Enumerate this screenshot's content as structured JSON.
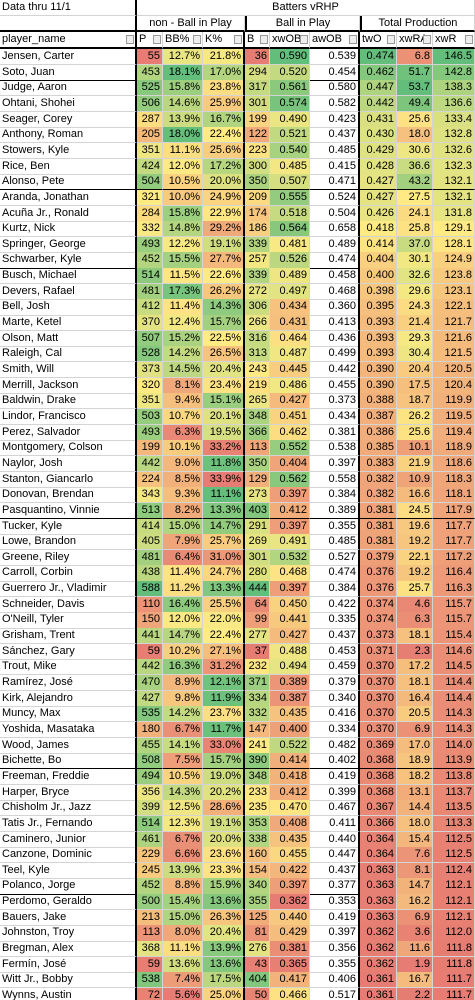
{
  "header": {
    "date": "Data thru 11/1",
    "title": "Batters vRHP",
    "groups": [
      "non - Ball in Play",
      "Ball in Play",
      "Total Production"
    ]
  },
  "table": {
    "columns": [
      "player_name",
      "P",
      "BB%",
      "K%",
      "B",
      "xwOB",
      "awOB",
      "twO",
      "xwRA",
      "xwR"
    ],
    "rows": [
      [
        "Jensen, Carter",
        "55",
        "12.7%",
        "21.8%",
        "36",
        "0.590",
        "0.539",
        "0.474",
        "6.8",
        "146.5"
      ],
      [
        "Soto, Juan",
        "453",
        "18.1%",
        "17.0%",
        "294",
        "0.520",
        "0.454",
        "0.462",
        "51.7",
        "142.8"
      ],
      [
        "Judge, Aaron",
        "525",
        "15.8%",
        "23.8%",
        "317",
        "0.561",
        "0.580",
        "0.447",
        "53.7",
        "138.3"
      ],
      [
        "Ohtani, Shohei",
        "506",
        "14.6%",
        "25.9%",
        "301",
        "0.574",
        "0.582",
        "0.442",
        "49.4",
        "136.6"
      ],
      [
        "Seager, Corey",
        "287",
        "13.9%",
        "16.7%",
        "199",
        "0.490",
        "0.423",
        "0.431",
        "25.6",
        "133.4"
      ],
      [
        "Anthony, Roman",
        "205",
        "18.0%",
        "22.4%",
        "122",
        "0.521",
        "0.437",
        "0.430",
        "18.0",
        "132.8"
      ],
      [
        "Stowers, Kyle",
        "351",
        "11.1%",
        "25.6%",
        "223",
        "0.540",
        "0.485",
        "0.429",
        "30.6",
        "132.6"
      ],
      [
        "Rice, Ben",
        "424",
        "12.0%",
        "17.2%",
        "300",
        "0.485",
        "0.415",
        "0.428",
        "36.6",
        "132.3"
      ],
      [
        "Alonso, Pete",
        "504",
        "10.5%",
        "20.0%",
        "350",
        "0.507",
        "0.471",
        "0.427",
        "43.2",
        "132.1"
      ],
      [
        "Aranda, Jonathan",
        "321",
        "10.0%",
        "24.9%",
        "209",
        "0.555",
        "0.524",
        "0.427",
        "27.5",
        "132.1"
      ],
      [
        "Acuña Jr., Ronald",
        "284",
        "15.8%",
        "22.9%",
        "174",
        "0.518",
        "0.504",
        "0.426",
        "24.1",
        "131.8"
      ],
      [
        "Kurtz, Nick",
        "332",
        "14.8%",
        "29.2%",
        "186",
        "0.564",
        "0.658",
        "0.418",
        "25.8",
        "129.1"
      ],
      [
        "Springer, George",
        "493",
        "12.2%",
        "19.1%",
        "339",
        "0.481",
        "0.489",
        "0.414",
        "37.0",
        "128.1"
      ],
      [
        "Schwarber, Kyle",
        "452",
        "15.5%",
        "27.7%",
        "257",
        "0.526",
        "0.474",
        "0.404",
        "30.1",
        "124.9"
      ],
      [
        "Busch, Michael",
        "514",
        "11.5%",
        "22.6%",
        "339",
        "0.489",
        "0.458",
        "0.400",
        "32.6",
        "123.8"
      ],
      [
        "Devers, Rafael",
        "481",
        "17.3%",
        "26.2%",
        "272",
        "0.497",
        "0.468",
        "0.398",
        "29.6",
        "123.1"
      ],
      [
        "Bell, Josh",
        "412",
        "11.4%",
        "14.3%",
        "306",
        "0.434",
        "0.360",
        "0.395",
        "24.3",
        "122.1"
      ],
      [
        "Marte, Ketel",
        "370",
        "12.4%",
        "15.7%",
        "266",
        "0.431",
        "0.413",
        "0.393",
        "21.4",
        "121.7"
      ],
      [
        "Olson, Matt",
        "507",
        "15.2%",
        "22.5%",
        "316",
        "0.464",
        "0.436",
        "0.393",
        "29.3",
        "121.6"
      ],
      [
        "Raleigh, Cal",
        "528",
        "14.2%",
        "26.5%",
        "313",
        "0.487",
        "0.499",
        "0.393",
        "30.4",
        "121.5"
      ],
      [
        "Smith, Will",
        "373",
        "14.5%",
        "20.4%",
        "243",
        "0.445",
        "0.442",
        "0.390",
        "20.4",
        "120.5"
      ],
      [
        "Merrill, Jackson",
        "320",
        "8.1%",
        "23.4%",
        "219",
        "0.486",
        "0.455",
        "0.390",
        "17.5",
        "120.4"
      ],
      [
        "Baldwin, Drake",
        "351",
        "9.4%",
        "15.1%",
        "265",
        "0.427",
        "0.373",
        "0.388",
        "18.7",
        "119.9"
      ],
      [
        "Lindor, Francisco",
        "503",
        "10.7%",
        "20.1%",
        "348",
        "0.451",
        "0.434",
        "0.387",
        "26.2",
        "119.5"
      ],
      [
        "Perez, Salvador",
        "493",
        "6.3%",
        "19.5%",
        "366",
        "0.462",
        "0.381",
        "0.386",
        "25.6",
        "119.4"
      ],
      [
        "Montgomery, Colson",
        "199",
        "10.1%",
        "33.2%",
        "113",
        "0.552",
        "0.538",
        "0.385",
        "10.1",
        "118.9"
      ],
      [
        "Naylor, Josh",
        "442",
        "9.0%",
        "11.8%",
        "350",
        "0.404",
        "0.397",
        "0.383",
        "21.9",
        "118.6"
      ],
      [
        "Stanton, Giancarlo",
        "224",
        "8.5%",
        "33.9%",
        "129",
        "0.562",
        "0.558",
        "0.382",
        "10.9",
        "118.3"
      ],
      [
        "Donovan, Brendan",
        "343",
        "9.3%",
        "11.1%",
        "273",
        "0.397",
        "0.384",
        "0.382",
        "16.6",
        "118.1"
      ],
      [
        "Pasquantino, Vinnie",
        "513",
        "8.2%",
        "13.3%",
        "403",
        "0.412",
        "0.389",
        "0.381",
        "24.5",
        "117.9"
      ],
      [
        "Tucker, Kyle",
        "414",
        "15.0%",
        "14.7%",
        "291",
        "0.397",
        "0.355",
        "0.381",
        "19.6",
        "117.7"
      ],
      [
        "Lowe, Brandon",
        "405",
        "7.9%",
        "25.7%",
        "269",
        "0.491",
        "0.485",
        "0.381",
        "19.2",
        "117.7"
      ],
      [
        "Greene, Riley",
        "481",
        "6.4%",
        "31.0%",
        "301",
        "0.532",
        "0.527",
        "0.379",
        "22.1",
        "117.2"
      ],
      [
        "Carroll, Corbin",
        "438",
        "11.4%",
        "24.7%",
        "280",
        "0.468",
        "0.474",
        "0.376",
        "19.2",
        "116.4"
      ],
      [
        "Guerrero Jr., Vladimir",
        "588",
        "11.2%",
        "13.3%",
        "444",
        "0.397",
        "0.384",
        "0.376",
        "25.7",
        "116.3"
      ],
      [
        "Schneider, Davis",
        "110",
        "16.4%",
        "25.5%",
        "64",
        "0.450",
        "0.422",
        "0.374",
        "4.6",
        "115.7"
      ],
      [
        "O'Neill, Tyler",
        "150",
        "12.0%",
        "22.0%",
        "99",
        "0.441",
        "0.335",
        "0.374",
        "6.3",
        "115.7"
      ],
      [
        "Grisham, Trent",
        "441",
        "14.7%",
        "22.4%",
        "277",
        "0.427",
        "0.437",
        "0.373",
        "18.1",
        "115.4"
      ],
      [
        "Sánchez, Gary",
        "59",
        "10.2%",
        "27.1%",
        "37",
        "0.488",
        "0.453",
        "0.371",
        "2.3",
        "114.6"
      ],
      [
        "Trout, Mike",
        "442",
        "16.3%",
        "31.2%",
        "232",
        "0.494",
        "0.459",
        "0.370",
        "17.2",
        "114.5"
      ],
      [
        "Ramírez, José",
        "470",
        "8.9%",
        "12.1%",
        "371",
        "0.389",
        "0.379",
        "0.370",
        "18.1",
        "114.4"
      ],
      [
        "Kirk, Alejandro",
        "427",
        "9.8%",
        "11.9%",
        "334",
        "0.387",
        "0.340",
        "0.370",
        "16.4",
        "114.4"
      ],
      [
        "Muncy, Max",
        "535",
        "14.2%",
        "23.7%",
        "332",
        "0.435",
        "0.416",
        "0.370",
        "20.5",
        "114.3"
      ],
      [
        "Yoshida, Masataka",
        "180",
        "6.7%",
        "11.7%",
        "147",
        "0.400",
        "0.334",
        "0.370",
        "6.9",
        "114.3"
      ],
      [
        "Wood, James",
        "455",
        "14.1%",
        "33.0%",
        "241",
        "0.522",
        "0.482",
        "0.369",
        "17.0",
        "114.0"
      ],
      [
        "Bichette, Bo",
        "508",
        "7.5%",
        "15.7%",
        "390",
        "0.414",
        "0.402",
        "0.368",
        "18.9",
        "113.9"
      ],
      [
        "Freeman, Freddie",
        "494",
        "10.5%",
        "19.0%",
        "348",
        "0.418",
        "0.419",
        "0.368",
        "18.2",
        "113.8"
      ],
      [
        "Harper, Bryce",
        "356",
        "14.3%",
        "20.2%",
        "233",
        "0.412",
        "0.399",
        "0.368",
        "13.1",
        "113.7"
      ],
      [
        "Chisholm Jr., Jazz",
        "399",
        "12.5%",
        "28.6%",
        "235",
        "0.470",
        "0.467",
        "0.367",
        "14.4",
        "113.5"
      ],
      [
        "Tatis Jr., Fernando",
        "514",
        "12.3%",
        "19.1%",
        "353",
        "0.408",
        "0.411",
        "0.366",
        "18.0",
        "113.3"
      ],
      [
        "Caminero, Junior",
        "461",
        "6.7%",
        "20.0%",
        "338",
        "0.435",
        "0.440",
        "0.364",
        "15.4",
        "112.5"
      ],
      [
        "Canzone, Dominic",
        "229",
        "6.6%",
        "23.6%",
        "160",
        "0.455",
        "0.447",
        "0.364",
        "7.6",
        "112.5"
      ],
      [
        "Teel, Kyle",
        "245",
        "13.9%",
        "23.3%",
        "154",
        "0.422",
        "0.437",
        "0.363",
        "8.1",
        "112.4"
      ],
      [
        "Polanco, Jorge",
        "452",
        "8.8%",
        "15.9%",
        "340",
        "0.397",
        "0.377",
        "0.363",
        "14.7",
        "112.1"
      ],
      [
        "Perdomo, Geraldo",
        "500",
        "15.4%",
        "13.6%",
        "355",
        "0.362",
        "0.353",
        "0.363",
        "16.2",
        "112.1"
      ],
      [
        "Bauers, Jake",
        "213",
        "15.0%",
        "26.3%",
        "125",
        "0.440",
        "0.419",
        "0.363",
        "6.9",
        "112.1"
      ],
      [
        "Johnston, Troy",
        "113",
        "8.0%",
        "20.4%",
        "81",
        "0.429",
        "0.397",
        "0.362",
        "3.6",
        "112.0"
      ],
      [
        "Bregman, Alex",
        "368",
        "11.1%",
        "13.9%",
        "276",
        "0.381",
        "0.356",
        "0.362",
        "11.6",
        "111.8"
      ],
      [
        "Fermín, José",
        "59",
        "13.6%",
        "13.6%",
        "43",
        "0.365",
        "0.355",
        "0.362",
        "1.9",
        "111.8"
      ],
      [
        "Witt Jr., Bobby",
        "538",
        "7.4%",
        "17.5%",
        "404",
        "0.417",
        "0.406",
        "0.361",
        "16.7",
        "111.7"
      ],
      [
        "Wynns, Austin",
        "72",
        "5.6%",
        "25.0%",
        "50",
        "0.466",
        "0.517",
        "0.361",
        "2.2",
        "111.7"
      ]
    ]
  }
}
